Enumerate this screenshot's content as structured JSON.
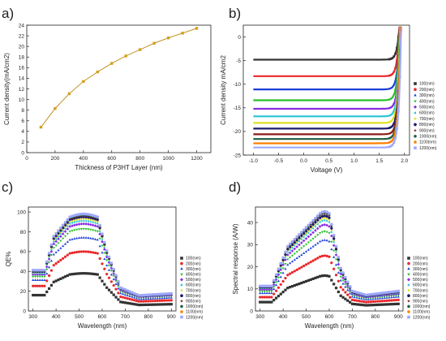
{
  "figure": {
    "panel_labels": [
      "a)",
      "b)",
      "c)",
      "d)"
    ]
  },
  "chart_data": [
    {
      "type": "line",
      "panel": "a)",
      "xlabel": "Thickness of P3HT Layer (nm)",
      "ylabel": "Current density(mA/cm2)",
      "xlim": [
        0,
        1300
      ],
      "ylim": [
        0,
        24
      ],
      "xticks": [
        0,
        200,
        400,
        600,
        800,
        1000,
        1200
      ],
      "yticks": [
        0,
        2,
        4,
        6,
        8,
        10,
        12,
        14,
        16,
        18,
        20,
        22,
        24
      ],
      "x": [
        100,
        200,
        300,
        400,
        500,
        600,
        700,
        800,
        900,
        1000,
        1100,
        1200
      ],
      "series": [
        {
          "values": [
            4.8,
            8.3,
            11.1,
            13.4,
            15.2,
            16.8,
            18.2,
            19.4,
            20.6,
            21.6,
            22.5,
            23.4
          ],
          "color": "#d4a017"
        }
      ],
      "grid": false
    },
    {
      "type": "line",
      "panel": "b)",
      "xlabel": "Voltage (V)",
      "ylabel": "Current density mA/cm2",
      "xlim": [
        -1.2,
        2.1
      ],
      "ylim": [
        -25,
        2.5
      ],
      "xticks": [
        -1.0,
        -0.5,
        0.0,
        0.5,
        1.0,
        1.5,
        2.0
      ],
      "xtick_labels": [
        "-1.0",
        "-0.5",
        "0.0",
        "0.5",
        "1.0",
        "1.5",
        "2.0"
      ],
      "yticks": [
        -25,
        -20,
        -15,
        -10,
        -5,
        0
      ],
      "legend": [
        "100(nm)",
        "200(nm)",
        "300(nm)",
        "400(nm)",
        "500(nm)",
        "600(nm)",
        "700(nm)",
        "800(nm)",
        "900(nm)",
        "1000(nm)",
        "1100(nm)",
        "1200(nm)"
      ],
      "legend_position": "right",
      "jsc": [
        -4.8,
        -8.3,
        -11.1,
        -13.4,
        -15.2,
        -16.8,
        -18.2,
        -19.4,
        -20.6,
        -21.6,
        -22.5,
        -23.4
      ],
      "voc": [
        1.88,
        1.89,
        1.9,
        1.9,
        1.91,
        1.91,
        1.91,
        1.92,
        1.92,
        1.92,
        1.92,
        1.93
      ],
      "grid": false
    },
    {
      "type": "scatter",
      "panel": "c)",
      "xlabel": "Wavelength (nm)",
      "ylabel": "QE%",
      "xlim": [
        280,
        920
      ],
      "ylim": [
        0,
        105
      ],
      "xticks": [
        300,
        400,
        500,
        600,
        700,
        800,
        900
      ],
      "yticks": [
        0,
        20,
        40,
        60,
        80,
        100
      ],
      "legend": [
        "100(nm)",
        "200(nm)",
        "300(nm)",
        "400(nm)",
        "500(nm)",
        "600(nm)",
        "700(nm)",
        "800(nm)",
        "900(nm)",
        "1000(nm)",
        "1100(nm)",
        "1200(nm)"
      ],
      "legend_position": "right",
      "peak_values": [
        38,
        60,
        74,
        83,
        88,
        91,
        93,
        95,
        96,
        97,
        98,
        98
      ],
      "grid": false
    },
    {
      "type": "scatter",
      "panel": "d)",
      "xlabel": "Wavelength (nm)",
      "ylabel": "Spectral response (A/W)",
      "xlim": [
        280,
        920
      ],
      "ylim": [
        0,
        47
      ],
      "xticks": [
        300,
        400,
        500,
        600,
        700,
        800,
        900
      ],
      "yticks": [
        0,
        10,
        20,
        30,
        40
      ],
      "legend": [
        "100(nm)",
        "200(nm)",
        "300(nm)",
        "400(nm)",
        "500(nm)",
        "600(nm)",
        "700(nm)",
        "800(nm)",
        "900(nm)",
        "1000(nm)",
        "1100(nm)",
        "1200(nm)"
      ],
      "legend_position": "right",
      "peak_values": [
        16,
        25,
        32,
        36,
        39,
        41,
        42,
        43,
        44,
        44.5,
        45,
        45
      ],
      "grid": false
    }
  ],
  "series_colors": [
    "#333333",
    "#e8282b",
    "#1d3fd8",
    "#2bbf2b",
    "#8a2be2",
    "#25c4d6",
    "#e0e020",
    "#1c1c6e",
    "#8b1a1a",
    "#1f5f3f",
    "#ff7f00",
    "#9da8ff"
  ],
  "marker_shapes": [
    "square",
    "circle",
    "triangle-up",
    "triangle-down",
    "diamond",
    "triangle-left",
    "triangle-right",
    "hexagon",
    "star",
    "pentagon",
    "circle",
    "square"
  ]
}
